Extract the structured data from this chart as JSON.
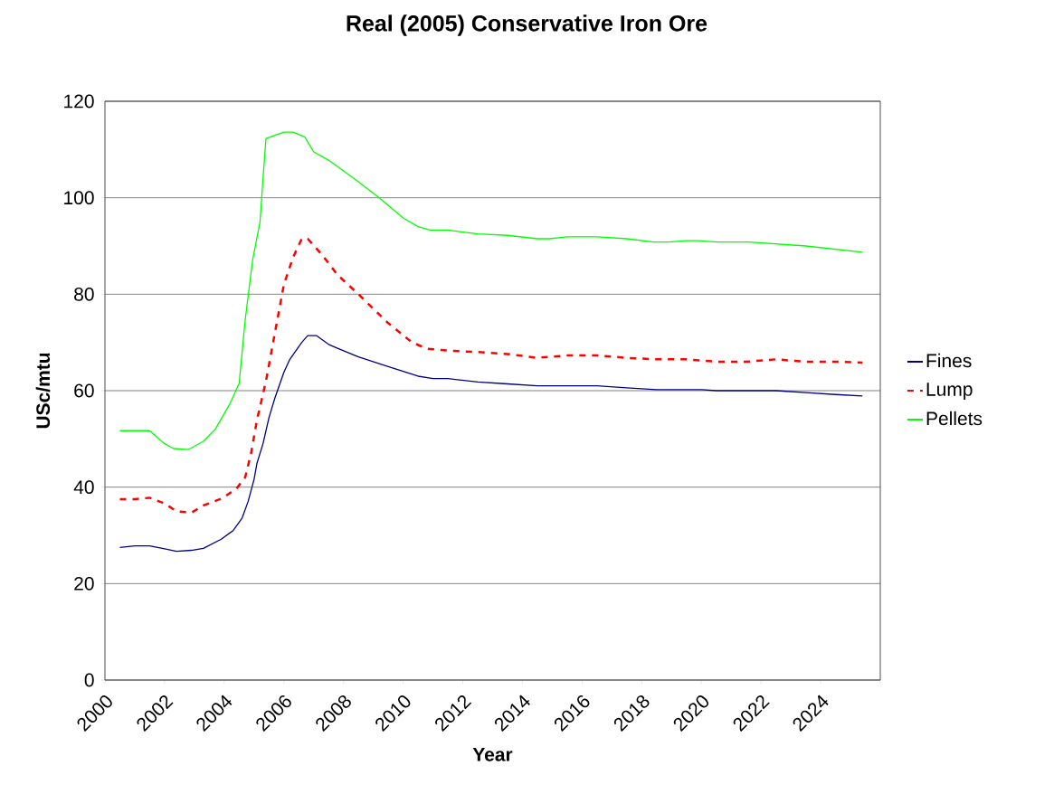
{
  "chart_data": {
    "type": "line",
    "title": "Real (2005) Conservative Iron Ore",
    "xlabel": "Year",
    "ylabel": "USc/mtu",
    "xlim": [
      2000,
      2026
    ],
    "xticks": [
      2000,
      2002,
      2004,
      2006,
      2008,
      2010,
      2012,
      2014,
      2016,
      2018,
      2020,
      2022,
      2024,
      {
        "value": 2026,
        "label": null
      }
    ],
    "ylim": [
      0,
      120
    ],
    "yticks": [
      0,
      20,
      40,
      60,
      80,
      100,
      120
    ],
    "grid": "y",
    "legend": "right",
    "marker": "none",
    "series": [
      {
        "name": "Fines",
        "color": "#000080",
        "line_style": "solid",
        "x": [
          2000.5,
          2001,
          2001.5,
          2002,
          2002.4,
          2002.9,
          2003.3,
          2003.9,
          2004.3,
          2004.6,
          2004.8,
          2005,
          2005.1,
          2005.3,
          2005.5,
          2005.7,
          2006,
          2006.2,
          2006.6,
          2006.8,
          2007.1,
          2007.3,
          2007.5,
          2007.8,
          2008.5,
          2009.5,
          2010.5,
          2011,
          2011.5,
          2012.5,
          2013.5,
          2014.5,
          2015.5,
          2016.5,
          2017.5,
          2018.5,
          2019.5,
          2020,
          2020.5,
          2021.5,
          2022.5,
          2023.5,
          2024.5,
          2025.4
        ],
        "values": [
          27.5,
          27.8,
          27.8,
          27.2,
          26.7,
          26.9,
          27.3,
          29.2,
          31,
          33.6,
          37,
          41.6,
          45,
          49,
          54.4,
          58.5,
          63.8,
          66.5,
          70,
          71.4,
          71.4,
          70.5,
          69.6,
          68.8,
          67,
          65,
          63,
          62.5,
          62.5,
          61.8,
          61.4,
          61,
          61,
          61,
          60.6,
          60.2,
          60.2,
          60.2,
          60,
          60,
          60,
          59.6,
          59.2,
          58.9
        ]
      },
      {
        "name": "Lump",
        "color": "#ff0000",
        "line_style": "dashed",
        "x": [
          2000.5,
          2001,
          2001.5,
          2002,
          2002.4,
          2002.9,
          2003.3,
          2003.9,
          2004.4,
          2004.7,
          2004.9,
          2005.1,
          2005.4,
          2005.7,
          2006,
          2006.3,
          2006.6,
          2006.8,
          2007.3,
          2007.8,
          2008.5,
          2009.5,
          2010.3,
          2010.8,
          2011.5,
          2012.5,
          2013.5,
          2014.5,
          2015.5,
          2016.5,
          2017.5,
          2018.5,
          2019.5,
          2020.5,
          2021.5,
          2022.5,
          2023.5,
          2024.5,
          2025.4
        ],
        "values": [
          37.5,
          37.5,
          37.8,
          36.6,
          35,
          34.7,
          36.2,
          37.6,
          39.6,
          42,
          47,
          54,
          62,
          72,
          82,
          87.5,
          91.5,
          91.5,
          88,
          84,
          80,
          74,
          70,
          68.7,
          68.3,
          68,
          67.6,
          66.8,
          67.3,
          67.3,
          66.8,
          66.5,
          66.5,
          66,
          66,
          66.5,
          66,
          66,
          65.8
        ]
      },
      {
        "name": "Pellets",
        "color": "#00ff00",
        "line_style": "solid",
        "x": [
          2000.5,
          2001.5,
          2002,
          2002.3,
          2002.8,
          2003.3,
          2003.7,
          2004.2,
          2004.5,
          2004.7,
          2004.95,
          2005.2,
          2005.3,
          2005.4,
          2006,
          2006.3,
          2006.7,
          2007,
          2007.5,
          2008.5,
          2009.2,
          2010,
          2010.5,
          2010.9,
          2011.5,
          2012.5,
          2013.5,
          2014.5,
          2014.9,
          2015.5,
          2016.5,
          2017.5,
          2018.4,
          2018.9,
          2019.5,
          2019.9,
          2020.5,
          2021.6,
          2023.5,
          2025.4
        ],
        "values": [
          51.7,
          51.7,
          49,
          48,
          47.8,
          49.5,
          52,
          57.4,
          61.5,
          74.5,
          87,
          95,
          104,
          112.3,
          113.6,
          113.6,
          112.6,
          109.5,
          107.8,
          103.3,
          100,
          95.8,
          94,
          93.3,
          93.3,
          92.5,
          92.2,
          91.5,
          91.5,
          91.9,
          91.9,
          91.5,
          90.8,
          90.8,
          91.1,
          91.1,
          90.8,
          90.8,
          90,
          88.7
        ]
      }
    ]
  }
}
